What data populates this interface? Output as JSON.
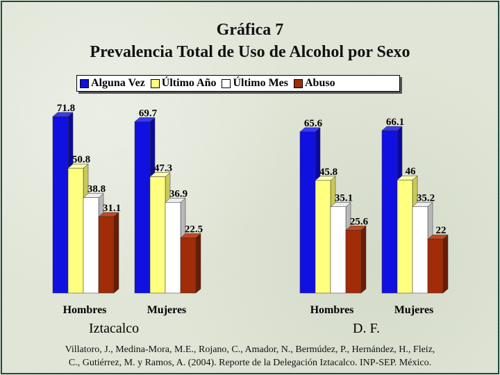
{
  "title": "Gráfica 7",
  "subtitle": "Prevalencia Total de Uso de Alcohol por Sexo",
  "citation_line1": "Villatoro, J., Medina-Mora, M.E., Rojano, C., Amador, N., Bermúdez, P., Hernández, H., Fleiz,",
  "citation_line2": "C., Gutiérrez, M. y Ramos, A. (2004). Reporte de la Delegación Iztacalco. INP-SEP. México.",
  "colors": {
    "blue": "#1010e0",
    "yellow": "#ffff80",
    "white": "#ffffff",
    "brown": "#a02c08"
  },
  "chart_data": {
    "type": "bar",
    "groups": [
      {
        "name": "Iztacalco",
        "categories": [
          "Hombres",
          "Mujeres"
        ]
      },
      {
        "name": "D. F.",
        "categories": [
          "Hombres",
          "Mujeres"
        ]
      }
    ],
    "series": [
      {
        "name": "Alguna Vez",
        "color": "#1010e0",
        "values": [
          71.8,
          69.7,
          65.6,
          66.1
        ]
      },
      {
        "name": "Último Año",
        "color": "#ffff80",
        "values": [
          50.8,
          47.3,
          45.8,
          46
        ]
      },
      {
        "name": "Último Mes",
        "color": "#ffffff",
        "values": [
          38.8,
          36.9,
          35.1,
          35.2
        ]
      },
      {
        "name": "Abuso",
        "color": "#a02c08",
        "values": [
          31.1,
          22.5,
          25.6,
          22
        ]
      }
    ],
    "legend_position": "top",
    "grid": false,
    "ylim": [
      0,
      75
    ]
  }
}
